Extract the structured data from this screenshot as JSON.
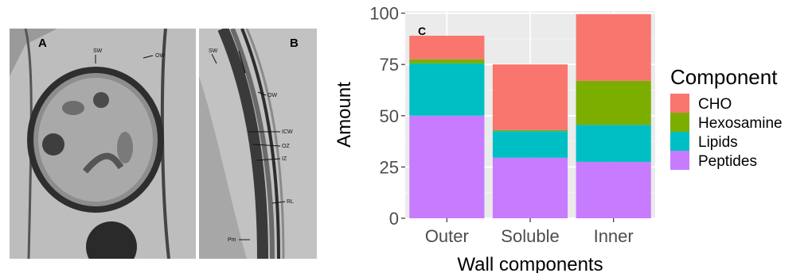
{
  "panels": {
    "a": {
      "letter": "A",
      "labels": {
        "sw": "SW",
        "ow": "OW"
      }
    },
    "b": {
      "letter": "B",
      "labels": {
        "sw": "SW",
        "ow": "OW",
        "icw": "ICW",
        "oz": "OZ",
        "iz": "IZ",
        "rl": "RL",
        "pm": "Pm"
      }
    }
  },
  "chart_data": {
    "type": "bar",
    "panel_letter": "C",
    "categories": [
      "Outer",
      "Soluble",
      "Inner"
    ],
    "series": [
      {
        "name": "Peptides",
        "color": "#c77cff",
        "values": [
          50,
          29.5,
          27.5
        ]
      },
      {
        "name": "Lipids",
        "color": "#00bfc4",
        "values": [
          25.5,
          13,
          18
        ]
      },
      {
        "name": "Hexosamine",
        "color": "#7cae00",
        "values": [
          2,
          0.5,
          21.5
        ]
      },
      {
        "name": "CHO",
        "color": "#f8766d",
        "values": [
          11.5,
          32,
          32.5
        ]
      }
    ],
    "stacked": true,
    "xlabel": "Wall components",
    "ylabel": "Amount",
    "ylim": [
      0,
      101
    ],
    "yticks": [
      0,
      25,
      50,
      75,
      100
    ],
    "grid": true,
    "legend": {
      "title": "Component",
      "placement": "right",
      "order": [
        "CHO",
        "Hexosamine",
        "Lipids",
        "Peptides"
      ]
    },
    "panel_bg": "#ebebeb",
    "grid_major": "#ffffff",
    "grid_minor": "#f4f4f4"
  }
}
